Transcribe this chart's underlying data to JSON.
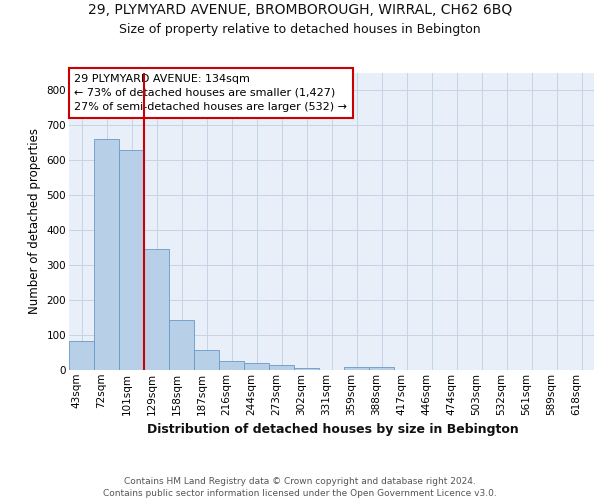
{
  "title1": "29, PLYMYARD AVENUE, BROMBOROUGH, WIRRAL, CH62 6BQ",
  "title2": "Size of property relative to detached houses in Bebington",
  "xlabel": "Distribution of detached houses by size in Bebington",
  "ylabel": "Number of detached properties",
  "categories": [
    "43sqm",
    "72sqm",
    "101sqm",
    "129sqm",
    "158sqm",
    "187sqm",
    "216sqm",
    "244sqm",
    "273sqm",
    "302sqm",
    "331sqm",
    "359sqm",
    "388sqm",
    "417sqm",
    "446sqm",
    "474sqm",
    "503sqm",
    "532sqm",
    "561sqm",
    "589sqm",
    "618sqm"
  ],
  "values": [
    83,
    660,
    628,
    345,
    143,
    58,
    26,
    20,
    14,
    7,
    0,
    8,
    8,
    0,
    0,
    0,
    0,
    0,
    0,
    0,
    0
  ],
  "bar_color": "#b8cfe8",
  "bar_edge_color": "#6699cc",
  "vline_color": "#cc0000",
  "annotation_text": "29 PLYMYARD AVENUE: 134sqm\n← 73% of detached houses are smaller (1,427)\n27% of semi-detached houses are larger (532) →",
  "annotation_box_color": "#ffffff",
  "annotation_box_edge": "#cc0000",
  "grid_color": "#c5d5e5",
  "bg_color": "#e8eff8",
  "ylim": [
    0,
    850
  ],
  "yticks": [
    0,
    100,
    200,
    300,
    400,
    500,
    600,
    700,
    800
  ],
  "footer": "Contains HM Land Registry data © Crown copyright and database right 2024.\nContains public sector information licensed under the Open Government Licence v3.0.",
  "title1_fontsize": 10,
  "title2_fontsize": 9,
  "xlabel_fontsize": 9,
  "ylabel_fontsize": 8.5,
  "tick_fontsize": 7.5,
  "annotation_fontsize": 8,
  "footer_fontsize": 6.5
}
